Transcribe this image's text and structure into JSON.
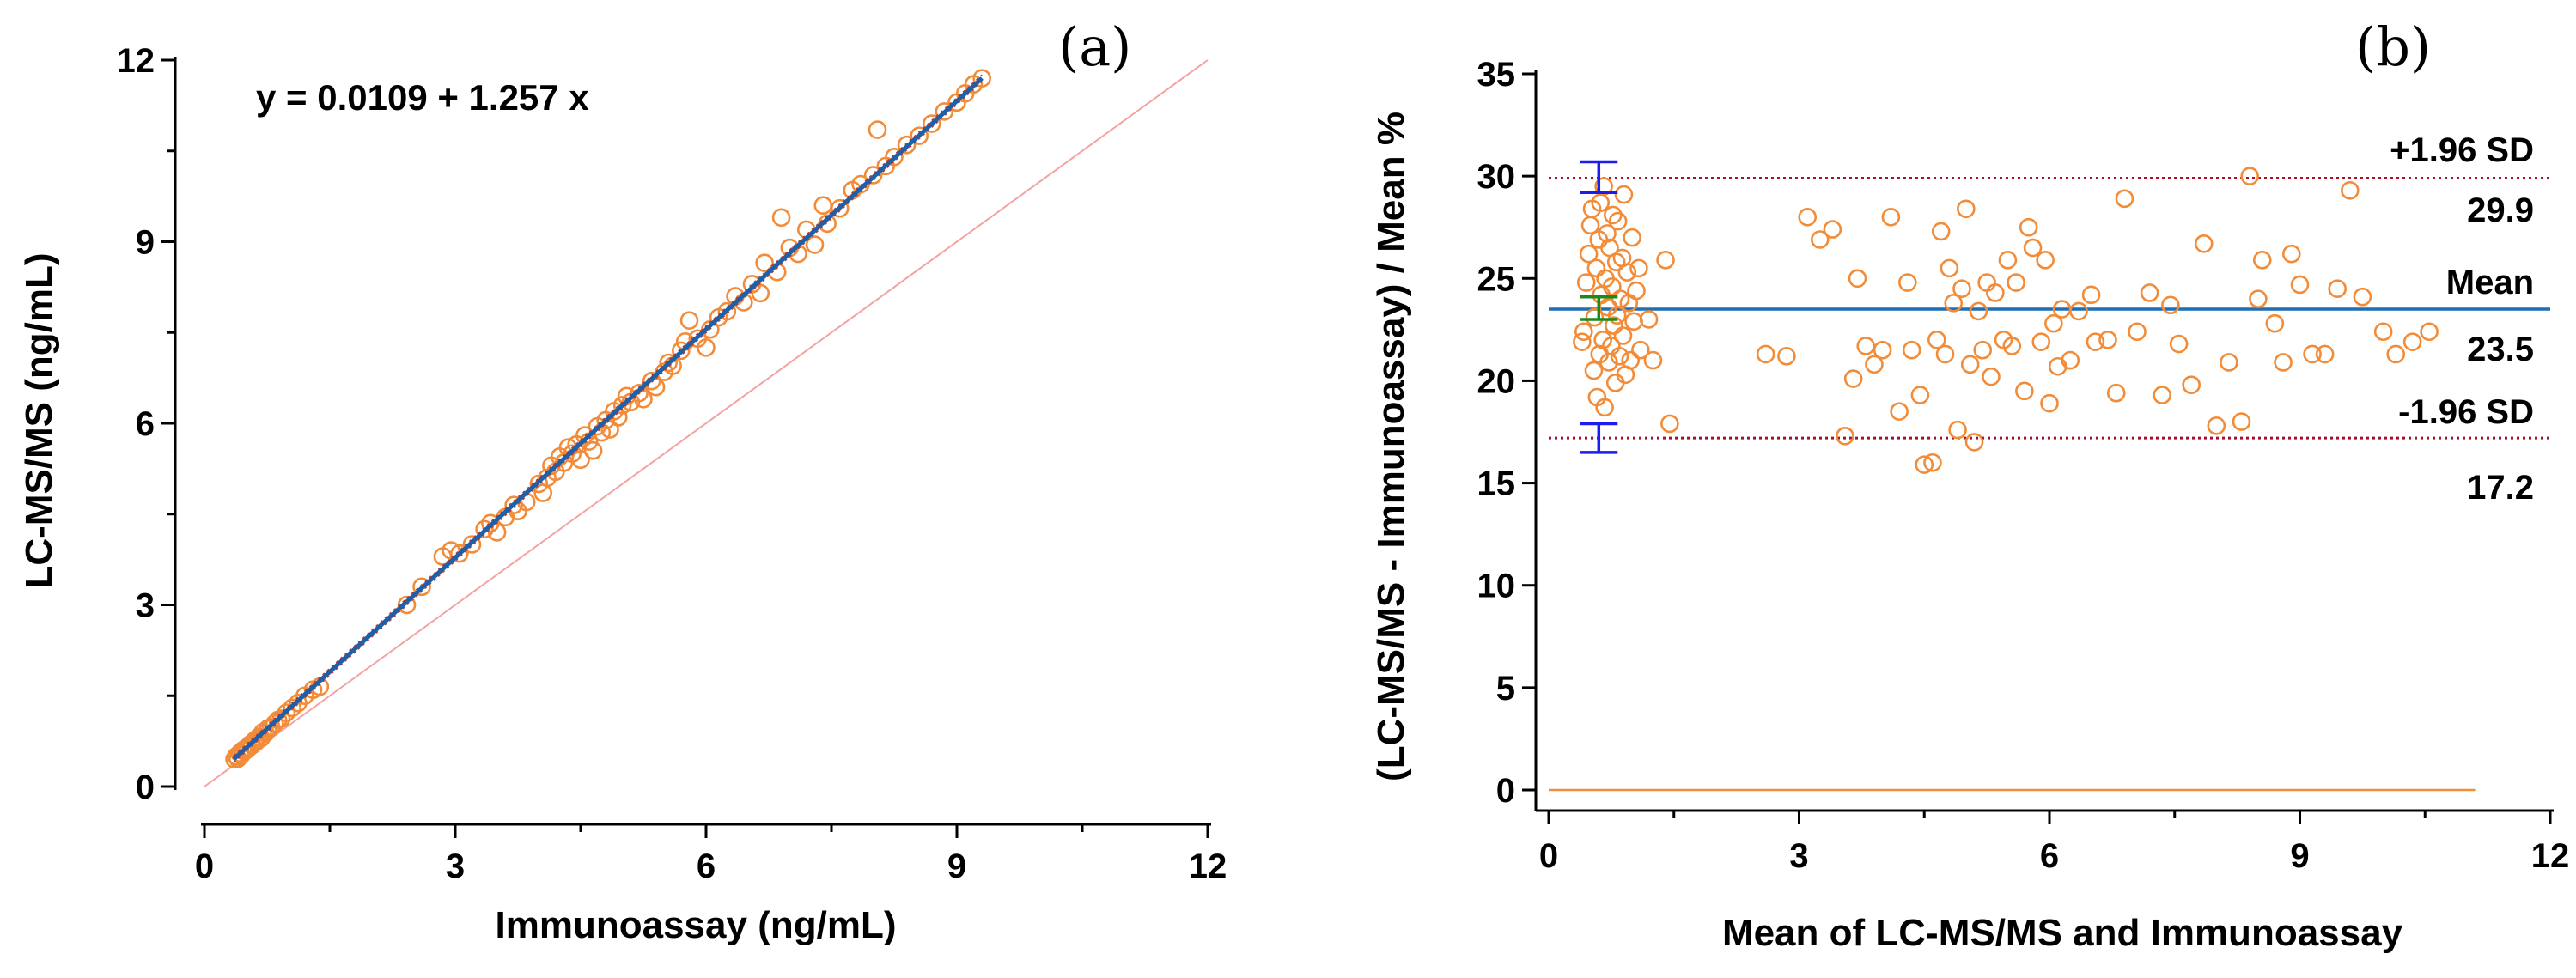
{
  "chart_data": [
    {
      "panel": "(a)",
      "type": "scatter",
      "xlabel": "Immunoassay (ng/mL)",
      "ylabel": "LC-MS/MS (ng/mL)",
      "xlim": [
        0,
        12
      ],
      "ylim": [
        0,
        12
      ],
      "xticks": [
        0,
        3,
        6,
        9,
        12
      ],
      "yticks": [
        0,
        3,
        6,
        9,
        12
      ],
      "equation": "y = 0.0109 + 1.257 x",
      "regression": {
        "intercept": 0.0109,
        "slope": 1.257,
        "x_range": [
          0.35,
          9.3
        ],
        "color": "#1f5fa8"
      },
      "identity_line": {
        "x_range": [
          0,
          12
        ],
        "color": "#f3a3a3"
      },
      "marker_color": "#f28c38",
      "points": [
        [
          0.36,
          0.45
        ],
        [
          0.38,
          0.5
        ],
        [
          0.4,
          0.46
        ],
        [
          0.42,
          0.55
        ],
        [
          0.44,
          0.52
        ],
        [
          0.46,
          0.6
        ],
        [
          0.48,
          0.58
        ],
        [
          0.5,
          0.64
        ],
        [
          0.52,
          0.62
        ],
        [
          0.55,
          0.7
        ],
        [
          0.57,
          0.68
        ],
        [
          0.6,
          0.76
        ],
        [
          0.62,
          0.74
        ],
        [
          0.65,
          0.82
        ],
        [
          0.68,
          0.8
        ],
        [
          0.7,
          0.9
        ],
        [
          0.73,
          0.88
        ],
        [
          0.76,
          0.96
        ],
        [
          0.8,
          0.98
        ],
        [
          0.84,
          1.04
        ],
        [
          0.88,
          1.1
        ],
        [
          0.92,
          1.12
        ],
        [
          0.98,
          1.22
        ],
        [
          1.05,
          1.3
        ],
        [
          1.12,
          1.38
        ],
        [
          1.2,
          1.5
        ],
        [
          1.3,
          1.6
        ],
        [
          1.38,
          1.65
        ],
        [
          2.42,
          3.0
        ],
        [
          2.6,
          3.3
        ],
        [
          2.85,
          3.8
        ],
        [
          2.95,
          3.9
        ],
        [
          3.05,
          3.85
        ],
        [
          3.2,
          4.0
        ],
        [
          3.35,
          4.25
        ],
        [
          3.42,
          4.35
        ],
        [
          3.5,
          4.2
        ],
        [
          3.6,
          4.45
        ],
        [
          3.7,
          4.65
        ],
        [
          3.75,
          4.55
        ],
        [
          3.85,
          4.7
        ],
        [
          4.0,
          5.0
        ],
        [
          4.05,
          4.85
        ],
        [
          4.1,
          5.1
        ],
        [
          4.15,
          5.3
        ],
        [
          4.2,
          5.2
        ],
        [
          4.25,
          5.45
        ],
        [
          4.3,
          5.35
        ],
        [
          4.35,
          5.6
        ],
        [
          4.4,
          5.5
        ],
        [
          4.45,
          5.65
        ],
        [
          4.5,
          5.4
        ],
        [
          4.55,
          5.8
        ],
        [
          4.6,
          5.7
        ],
        [
          4.65,
          5.55
        ],
        [
          4.7,
          5.95
        ],
        [
          4.75,
          5.85
        ],
        [
          4.8,
          6.05
        ],
        [
          4.85,
          5.9
        ],
        [
          4.9,
          6.2
        ],
        [
          4.95,
          6.1
        ],
        [
          5.0,
          6.3
        ],
        [
          5.05,
          6.45
        ],
        [
          5.1,
          6.35
        ],
        [
          5.2,
          6.5
        ],
        [
          5.25,
          6.4
        ],
        [
          5.35,
          6.7
        ],
        [
          5.4,
          6.6
        ],
        [
          5.5,
          6.85
        ],
        [
          5.55,
          7.0
        ],
        [
          5.6,
          6.95
        ],
        [
          5.7,
          7.2
        ],
        [
          5.75,
          7.35
        ],
        [
          5.8,
          7.7
        ],
        [
          5.9,
          7.4
        ],
        [
          6.0,
          7.25
        ],
        [
          6.05,
          7.55
        ],
        [
          6.15,
          7.75
        ],
        [
          6.25,
          7.85
        ],
        [
          6.35,
          8.1
        ],
        [
          6.45,
          8.0
        ],
        [
          6.55,
          8.3
        ],
        [
          6.65,
          8.15
        ],
        [
          6.7,
          8.65
        ],
        [
          6.85,
          8.5
        ],
        [
          6.9,
          9.4
        ],
        [
          7.0,
          8.9
        ],
        [
          7.1,
          8.8
        ],
        [
          7.2,
          9.2
        ],
        [
          7.3,
          8.95
        ],
        [
          7.4,
          9.6
        ],
        [
          7.45,
          9.3
        ],
        [
          7.6,
          9.55
        ],
        [
          7.75,
          9.85
        ],
        [
          7.85,
          9.95
        ],
        [
          8.0,
          10.1
        ],
        [
          8.05,
          10.85
        ],
        [
          8.15,
          10.25
        ],
        [
          8.25,
          10.4
        ],
        [
          8.4,
          10.6
        ],
        [
          8.55,
          10.75
        ],
        [
          8.7,
          10.95
        ],
        [
          8.85,
          11.15
        ],
        [
          9.0,
          11.3
        ],
        [
          9.1,
          11.45
        ],
        [
          9.2,
          11.6
        ],
        [
          9.3,
          11.7
        ]
      ]
    },
    {
      "panel": "(b)",
      "type": "scatter",
      "xlabel": "Mean of LC-MS/MS and Immunoassay",
      "ylabel": "(LC-MS/MS - Immunoassay) / Mean %",
      "xlim": [
        0,
        12
      ],
      "ylim": [
        0,
        35
      ],
      "xticks": [
        0,
        3,
        6,
        9,
        12
      ],
      "yticks": [
        0,
        5,
        10,
        15,
        20,
        25,
        30,
        35
      ],
      "mean_line": {
        "value": 23.5,
        "label": "Mean",
        "value_label": "23.5",
        "color": "#1f6fb5"
      },
      "upper_loa": {
        "value": 29.9,
        "label": "+1.96 SD",
        "value_label": "29.9",
        "color": "#a8102a"
      },
      "lower_loa": {
        "value": 17.2,
        "label": "-1.96 SD",
        "value_label": "17.2",
        "color": "#a8102a"
      },
      "zero_line": {
        "value": 0,
        "x_range": [
          0,
          11.1
        ],
        "color": "#f28c38"
      },
      "ci_bars": [
        {
          "x": 0.6,
          "low": 29.2,
          "high": 30.7,
          "color": "#1c1cf0"
        },
        {
          "x": 0.6,
          "low": 23.0,
          "high": 24.1,
          "color": "#1a8a1a"
        },
        {
          "x": 0.6,
          "low": 16.5,
          "high": 17.9,
          "color": "#1c1cf0"
        }
      ],
      "marker_color": "#f28c38",
      "points": [
        [
          0.4,
          21.9
        ],
        [
          0.42,
          22.4
        ],
        [
          0.45,
          24.8
        ],
        [
          0.48,
          26.2
        ],
        [
          0.5,
          27.6
        ],
        [
          0.52,
          28.4
        ],
        [
          0.54,
          20.5
        ],
        [
          0.55,
          23.1
        ],
        [
          0.57,
          25.5
        ],
        [
          0.58,
          19.2
        ],
        [
          0.6,
          26.9
        ],
        [
          0.61,
          21.3
        ],
        [
          0.62,
          28.7
        ],
        [
          0.63,
          24.2
        ],
        [
          0.65,
          22.0
        ],
        [
          0.66,
          29.5
        ],
        [
          0.67,
          18.7
        ],
        [
          0.68,
          25.0
        ],
        [
          0.7,
          27.2
        ],
        [
          0.71,
          23.6
        ],
        [
          0.72,
          20.9
        ],
        [
          0.73,
          26.5
        ],
        [
          0.75,
          21.7
        ],
        [
          0.76,
          24.6
        ],
        [
          0.77,
          28.1
        ],
        [
          0.78,
          22.7
        ],
        [
          0.8,
          19.9
        ],
        [
          0.81,
          25.8
        ],
        [
          0.82,
          23.2
        ],
        [
          0.83,
          27.8
        ],
        [
          0.85,
          21.2
        ],
        [
          0.86,
          24.0
        ],
        [
          0.88,
          26.0
        ],
        [
          0.89,
          22.2
        ],
        [
          0.9,
          29.1
        ],
        [
          0.92,
          20.3
        ],
        [
          0.94,
          25.3
        ],
        [
          0.96,
          23.8
        ],
        [
          0.98,
          21.0
        ],
        [
          1.0,
          27.0
        ],
        [
          1.02,
          22.9
        ],
        [
          1.05,
          24.4
        ],
        [
          1.08,
          25.5
        ],
        [
          1.1,
          21.5
        ],
        [
          1.2,
          23.0
        ],
        [
          1.25,
          21.0
        ],
        [
          1.4,
          25.9
        ],
        [
          1.45,
          17.9
        ],
        [
          2.6,
          21.3
        ],
        [
          2.85,
          21.2
        ],
        [
          3.1,
          28.0
        ],
        [
          3.25,
          26.9
        ],
        [
          3.4,
          27.4
        ],
        [
          3.55,
          17.3
        ],
        [
          3.65,
          20.1
        ],
        [
          3.7,
          25.0
        ],
        [
          3.8,
          21.7
        ],
        [
          3.9,
          20.8
        ],
        [
          4.0,
          21.5
        ],
        [
          4.1,
          28.0
        ],
        [
          4.2,
          18.5
        ],
        [
          4.3,
          24.8
        ],
        [
          4.35,
          21.5
        ],
        [
          4.45,
          19.3
        ],
        [
          4.5,
          15.9
        ],
        [
          4.6,
          16.0
        ],
        [
          4.65,
          22.0
        ],
        [
          4.7,
          27.3
        ],
        [
          4.75,
          21.3
        ],
        [
          4.8,
          25.5
        ],
        [
          4.85,
          23.8
        ],
        [
          4.9,
          17.6
        ],
        [
          4.95,
          24.5
        ],
        [
          5.0,
          28.4
        ],
        [
          5.05,
          20.8
        ],
        [
          5.1,
          17.0
        ],
        [
          5.15,
          23.4
        ],
        [
          5.2,
          21.5
        ],
        [
          5.25,
          24.8
        ],
        [
          5.3,
          20.2
        ],
        [
          5.35,
          24.3
        ],
        [
          5.45,
          22.0
        ],
        [
          5.5,
          25.9
        ],
        [
          5.55,
          21.7
        ],
        [
          5.6,
          24.8
        ],
        [
          5.7,
          19.5
        ],
        [
          5.75,
          27.5
        ],
        [
          5.8,
          26.5
        ],
        [
          5.9,
          21.9
        ],
        [
          5.95,
          25.9
        ],
        [
          6.0,
          18.9
        ],
        [
          6.05,
          22.8
        ],
        [
          6.1,
          20.7
        ],
        [
          6.15,
          23.5
        ],
        [
          6.25,
          21.0
        ],
        [
          6.35,
          23.4
        ],
        [
          6.5,
          24.2
        ],
        [
          6.55,
          21.9
        ],
        [
          6.7,
          22.0
        ],
        [
          6.8,
          19.4
        ],
        [
          6.9,
          28.9
        ],
        [
          7.05,
          22.4
        ],
        [
          7.2,
          24.3
        ],
        [
          7.35,
          19.3
        ],
        [
          7.45,
          23.7
        ],
        [
          7.55,
          21.8
        ],
        [
          7.7,
          19.8
        ],
        [
          7.85,
          26.7
        ],
        [
          8.0,
          17.8
        ],
        [
          8.15,
          20.9
        ],
        [
          8.3,
          18.0
        ],
        [
          8.4,
          30.0
        ],
        [
          8.5,
          24.0
        ],
        [
          8.55,
          25.9
        ],
        [
          8.7,
          22.8
        ],
        [
          8.8,
          20.9
        ],
        [
          8.9,
          26.2
        ],
        [
          9.0,
          24.7
        ],
        [
          9.15,
          21.3
        ],
        [
          9.3,
          21.3
        ],
        [
          9.45,
          24.5
        ],
        [
          9.6,
          29.3
        ],
        [
          9.75,
          24.1
        ],
        [
          10.0,
          22.4
        ],
        [
          10.15,
          21.3
        ],
        [
          10.35,
          21.9
        ],
        [
          10.55,
          22.4
        ]
      ]
    }
  ]
}
